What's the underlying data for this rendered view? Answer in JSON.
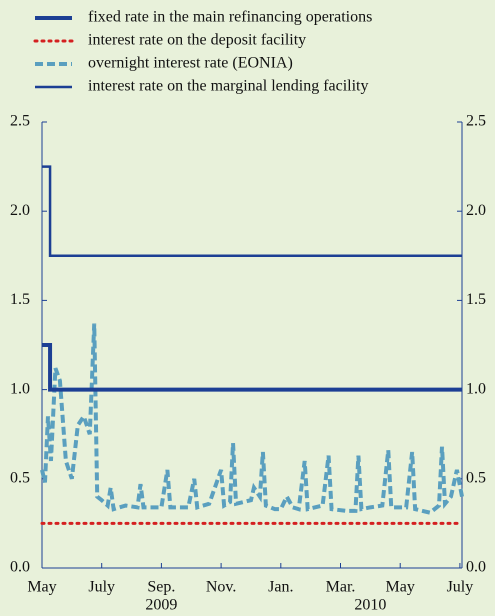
{
  "chart_data": {
    "type": "line",
    "series": [
      {
        "name": "fixed rate in the main refinancing operations",
        "color": "#1c3f94",
        "style": "solid",
        "width": 4,
        "x": [
          0,
          0.27,
          0.27,
          14.07
        ],
        "values": [
          1.25,
          1.25,
          1.0,
          1.0
        ]
      },
      {
        "name": "interest rate on the deposit facility",
        "color": "#d42020",
        "style": "dotted",
        "width": 3,
        "x": [
          0,
          14.07
        ],
        "values": [
          0.25,
          0.25
        ]
      },
      {
        "name": "overnight interest rate (EONIA)",
        "color": "#5a9fbf",
        "style": "dashed",
        "width": 4,
        "x": [
          0,
          0.1,
          0.2,
          0.3,
          0.45,
          0.6,
          0.8,
          1.0,
          1.2,
          1.4,
          1.6,
          1.75,
          1.85,
          2.0,
          2.2,
          2.3,
          2.4,
          2.8,
          3.2,
          3.3,
          3.4,
          4.0,
          4.2,
          4.3,
          4.9,
          5.1,
          5.2,
          5.6,
          6.0,
          6.1,
          6.3,
          6.4,
          6.5,
          7.0,
          7.1,
          7.3,
          7.4,
          7.5,
          7.8,
          8.0,
          8.2,
          8.4,
          8.6,
          8.8,
          8.9,
          9.4,
          9.6,
          9.7,
          10.2,
          10.5,
          10.6,
          10.7,
          11.0,
          11.4,
          11.6,
          11.7,
          12.2,
          12.4,
          12.5,
          13.0,
          13.3,
          13.4,
          13.5,
          13.7,
          13.9,
          14.07
        ],
        "values": [
          0.55,
          0.48,
          0.85,
          0.6,
          1.12,
          1.05,
          0.6,
          0.5,
          0.8,
          0.85,
          0.75,
          1.37,
          0.4,
          0.38,
          0.35,
          0.45,
          0.33,
          0.35,
          0.34,
          0.47,
          0.34,
          0.34,
          0.55,
          0.34,
          0.34,
          0.5,
          0.34,
          0.36,
          0.55,
          0.35,
          0.37,
          0.7,
          0.36,
          0.38,
          0.45,
          0.4,
          0.65,
          0.35,
          0.33,
          0.33,
          0.4,
          0.34,
          0.33,
          0.6,
          0.33,
          0.35,
          0.63,
          0.33,
          0.32,
          0.32,
          0.63,
          0.33,
          0.34,
          0.35,
          0.66,
          0.34,
          0.34,
          0.65,
          0.33,
          0.31,
          0.35,
          0.68,
          0.36,
          0.4,
          0.55,
          0.4
        ]
      },
      {
        "name": "interest rate on the marginal lending facility",
        "color": "#1c3f94",
        "style": "solid",
        "width": 2.5,
        "x": [
          0,
          0.27,
          0.27,
          14.07
        ],
        "values": [
          2.25,
          2.25,
          1.75,
          1.75
        ]
      }
    ],
    "xlim": [
      0,
      14.07
    ],
    "xticks": [
      {
        "value": 0,
        "label": "May"
      },
      {
        "value": 2,
        "label": "July"
      },
      {
        "value": 4,
        "label": "Sep."
      },
      {
        "value": 6,
        "label": "Nov."
      },
      {
        "value": 8,
        "label": "Jan."
      },
      {
        "value": 10,
        "label": "Mar."
      },
      {
        "value": 12,
        "label": "May"
      },
      {
        "value": 14,
        "label": "July"
      }
    ],
    "year_labels": [
      {
        "value": 4,
        "label": "2009"
      },
      {
        "value": 11,
        "label": "2010"
      }
    ],
    "ylim": [
      0,
      2.5
    ],
    "yticks": [
      {
        "value": 0,
        "label": "0.0"
      },
      0.5,
      {
        "value": 1,
        "label": "1.0"
      },
      1.5,
      {
        "value": 2,
        "label": "2.0"
      },
      2.5
    ],
    "y2lim": [
      0,
      2.5
    ],
    "y2ticks": [
      {
        "value": 0,
        "label": "0.0"
      },
      0.5,
      {
        "value": 1,
        "label": "1.0"
      },
      1.5,
      {
        "value": 2,
        "label": "2.0"
      },
      2.5
    ]
  }
}
